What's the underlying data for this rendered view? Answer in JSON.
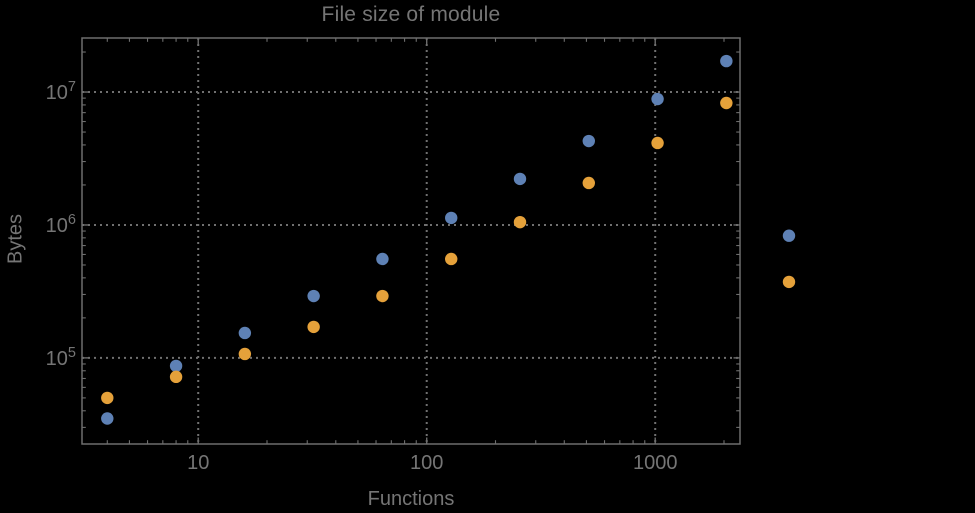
{
  "title": {
    "text": "File size of module"
  },
  "axes": {
    "x_label": "Functions",
    "y_label": "Bytes",
    "x_tick_labels": [
      "10",
      "100",
      "1000"
    ],
    "y_tick_base": "10",
    "y_tick_exponents": [
      "5",
      "6",
      "7"
    ]
  },
  "colors": {
    "background": "#000000",
    "frame": "#6e6e6e",
    "gridline": "#707070",
    "tick": "#6e6e6e",
    "text": "#757575",
    "series_blue": "#5E81B5",
    "series_orange": "#E5A13A"
  },
  "chart_data": {
    "type": "scatter",
    "title": "File size of module",
    "xlabel": "Functions",
    "ylabel": "Bytes",
    "x_scale": "log",
    "y_scale": "log",
    "xlim": [
      3.1,
      2350
    ],
    "ylim": [
      22500,
      25500000
    ],
    "grid": "dotted lines at powers of 10",
    "legend_position": "none",
    "x_major_gridlines": [
      10,
      100,
      1000
    ],
    "y_major_gridlines": [
      100000,
      1000000,
      10000000
    ],
    "note": "Last point pair (x ≈ 3850) is plotted outside the right edge of the plot frame",
    "series": [
      {
        "name": "blue",
        "color": "#5E81B5",
        "points": [
          [
            4,
            35000
          ],
          [
            8,
            87000
          ],
          [
            16,
            154000
          ],
          [
            32,
            292000
          ],
          [
            64,
            555000
          ],
          [
            128,
            1130000
          ],
          [
            256,
            2220000
          ],
          [
            512,
            4280000
          ],
          [
            1024,
            8860000
          ],
          [
            2048,
            17100000
          ],
          [
            3850,
            830000
          ]
        ]
      },
      {
        "name": "orange",
        "color": "#E5A13A",
        "points": [
          [
            4,
            50000
          ],
          [
            8,
            72000
          ],
          [
            16,
            107000
          ],
          [
            32,
            171000
          ],
          [
            64,
            292000
          ],
          [
            128,
            555000
          ],
          [
            256,
            1050000
          ],
          [
            512,
            2070000
          ],
          [
            1024,
            4140000
          ],
          [
            2048,
            8270000
          ],
          [
            3850,
            373000
          ]
        ]
      }
    ]
  }
}
